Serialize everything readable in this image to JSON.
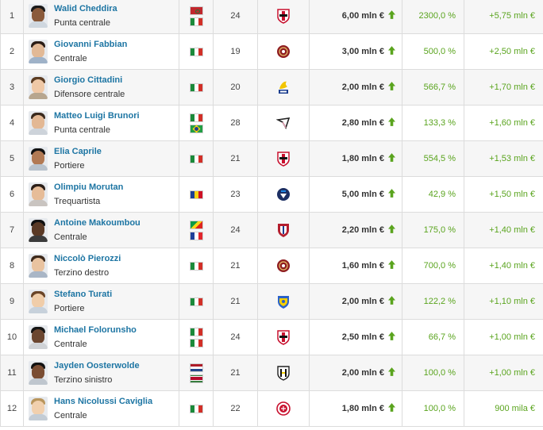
{
  "value_suffix_arrow": "up-arrow-icon",
  "rows": [
    {
      "rank": "1",
      "name": "Walid Cheddira",
      "position": "Punta centrale",
      "flags": [
        "morocco-flag",
        "italy-flag"
      ],
      "age": "24",
      "club_icon": "bari-crest-icon",
      "value": "6,00 mln €",
      "pct": "2300,0 %",
      "diff": "+5,75 mln €"
    },
    {
      "rank": "2",
      "name": "Giovanni Fabbian",
      "position": "Centrale",
      "flags": [
        "italy-flag"
      ],
      "age": "19",
      "club_icon": "reggina-crest-icon",
      "value": "3,00 mln €",
      "pct": "500,0 %",
      "diff": "+2,50 mln €"
    },
    {
      "rank": "3",
      "name": "Giorgio Cittadini",
      "position": "Difensore centrale",
      "flags": [
        "italy-flag"
      ],
      "age": "20",
      "club_icon": "modena-crest-icon",
      "value": "2,00 mln €",
      "pct": "566,7 %",
      "diff": "+1,70 mln €"
    },
    {
      "rank": "4",
      "name": "Matteo Luigi Brunori",
      "position": "Punta centrale",
      "flags": [
        "italy-flag",
        "brazil-flag"
      ],
      "age": "28",
      "club_icon": "palermo-crest-icon",
      "value": "2,80 mln €",
      "pct": "133,3 %",
      "diff": "+1,60 mln €"
    },
    {
      "rank": "5",
      "name": "Elia Caprile",
      "position": "Portiere",
      "flags": [
        "italy-flag"
      ],
      "age": "21",
      "club_icon": "bari-crest-icon",
      "value": "1,80 mln €",
      "pct": "554,5 %",
      "diff": "+1,53 mln €"
    },
    {
      "rank": "6",
      "name": "Olimpiu Morutan",
      "position": "Trequartista",
      "flags": [
        "romania-flag"
      ],
      "age": "23",
      "club_icon": "pisa-crest-icon",
      "value": "5,00 mln €",
      "pct": "42,9 %",
      "diff": "+1,50 mln €"
    },
    {
      "rank": "7",
      "name": "Antoine Makoumbou",
      "position": "Centrale",
      "flags": [
        "congo-flag",
        "france-flag"
      ],
      "age": "24",
      "club_icon": "cagliari-crest-icon",
      "value": "2,20 mln €",
      "pct": "175,0 %",
      "diff": "+1,40 mln €"
    },
    {
      "rank": "8",
      "name": "Niccolò Pierozzi",
      "position": "Terzino destro",
      "flags": [
        "italy-flag"
      ],
      "age": "21",
      "club_icon": "reggina-crest-icon",
      "value": "1,60 mln €",
      "pct": "700,0 %",
      "diff": "+1,40 mln €"
    },
    {
      "rank": "9",
      "name": "Stefano Turati",
      "position": "Portiere",
      "flags": [
        "italy-flag"
      ],
      "age": "21",
      "club_icon": "frosinone-crest-icon",
      "value": "2,00 mln €",
      "pct": "122,2 %",
      "diff": "+1,10 mln €"
    },
    {
      "rank": "10",
      "name": "Michael Folorunsho",
      "position": "Centrale",
      "flags": [
        "italy-flag",
        "italy-flag"
      ],
      "age": "24",
      "club_icon": "bari-crest-icon",
      "value": "2,50 mln €",
      "pct": "66,7 %",
      "diff": "+1,00 mln €"
    },
    {
      "rank": "11",
      "name": "Jayden Oosterwolde",
      "position": "Terzino sinistro",
      "flags": [
        "netherlands-flag",
        "suriname-flag"
      ],
      "age": "21",
      "club_icon": "parma-crest-icon",
      "value": "2,00 mln €",
      "pct": "100,0 %",
      "diff": "+1,00 mln €"
    },
    {
      "rank": "12",
      "name": "Hans Nicolussi Caviglia",
      "position": "Centrale",
      "flags": [
        "italy-flag"
      ],
      "age": "22",
      "club_icon": "sudtirol-crest-icon",
      "value": "1,80 mln €",
      "pct": "100,0 %",
      "diff": "900 mila €"
    }
  ]
}
